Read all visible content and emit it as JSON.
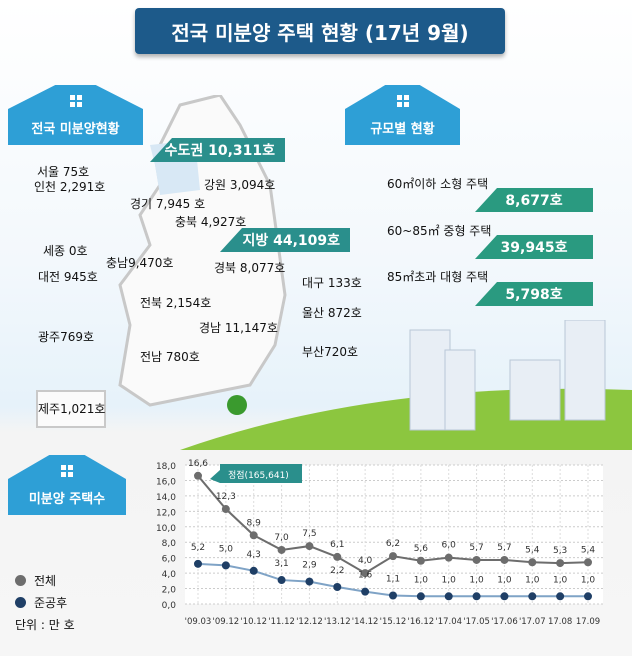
{
  "title": "전국 미분양 주택 현황 (17년 9월)",
  "map_section": {
    "title": "전국 미분양현황",
    "capital": "수도권 10,311호",
    "regional": "지방 44,109호",
    "regions": [
      "서울   75호",
      "인천 2,291호",
      "강원 3,094호",
      "경기 7,945 호",
      "충북 4,927호",
      "세종 0호",
      "충남9,470호",
      "대전 945호",
      "경북 8,077호",
      "대구 133호",
      "전북 2,154호",
      "울산 872호",
      "경남 11,147호",
      "광주769호",
      "전남 780호",
      "부산720호",
      "제주1,021호"
    ]
  },
  "size_section": {
    "title": "규모별 현황",
    "items": [
      {
        "label": "60㎡이하 소형 주택",
        "value": "8,677호"
      },
      {
        "label": "60~85㎡ 중형 주택",
        "value": "39,945호"
      },
      {
        "label": "85㎡초과 대형 주택",
        "value": "5,798호"
      }
    ]
  },
  "chart_section": {
    "title": "미분양 주택수",
    "unit": "단위 : 만 호"
  },
  "colors": {
    "total": "#6d6d6d",
    "completed": "#1f3f66",
    "accent": "#2a8f8c",
    "house": "#2e9fd6"
  },
  "chart_data": {
    "type": "line",
    "categories": [
      "'09.03",
      "'09.12",
      "'10.12",
      "'11.12",
      "'12.12",
      "'13.12",
      "'14.12",
      "'15.12",
      "'16.12",
      "'17.04",
      "'17.05",
      "'17.06",
      "'17.07",
      "17.08",
      "17.09"
    ],
    "series": [
      {
        "name": "전체",
        "values": [
          16.6,
          12.3,
          8.9,
          7.0,
          7.5,
          6.1,
          4.0,
          6.2,
          5.6,
          6.0,
          5.7,
          5.7,
          5.4,
          5.3,
          5.4
        ],
        "labels": [
          "16,6",
          "12,3",
          "8,9",
          "7,0",
          "7,5",
          "6,1",
          "4,0",
          "6,2",
          "5,6",
          "6,0",
          "5,7",
          "5,7",
          "5,4",
          "5,3",
          "5,4"
        ]
      },
      {
        "name": "준공후",
        "values": [
          5.2,
          5.0,
          4.3,
          3.1,
          2.9,
          2.2,
          1.6,
          1.1,
          1.0,
          1.0,
          1.0,
          1.0,
          1.0,
          1.0,
          1.0
        ],
        "labels": [
          "5,2",
          "5,0",
          "4,3",
          "3,1",
          "2,9",
          "2,2",
          "1,6",
          "1,1",
          "1,0",
          "1,0",
          "1,0",
          "1,0",
          "1,0",
          "1,0",
          "1,0"
        ]
      }
    ],
    "yticks": [
      "0,0",
      "2,0",
      "4,0",
      "6,0",
      "8,0",
      "10,0",
      "12,0",
      "14,0",
      "16,0",
      "18,0"
    ],
    "ylim": [
      0,
      18
    ],
    "grid": true,
    "legend": "left",
    "annotation": "정점(165,641)"
  }
}
